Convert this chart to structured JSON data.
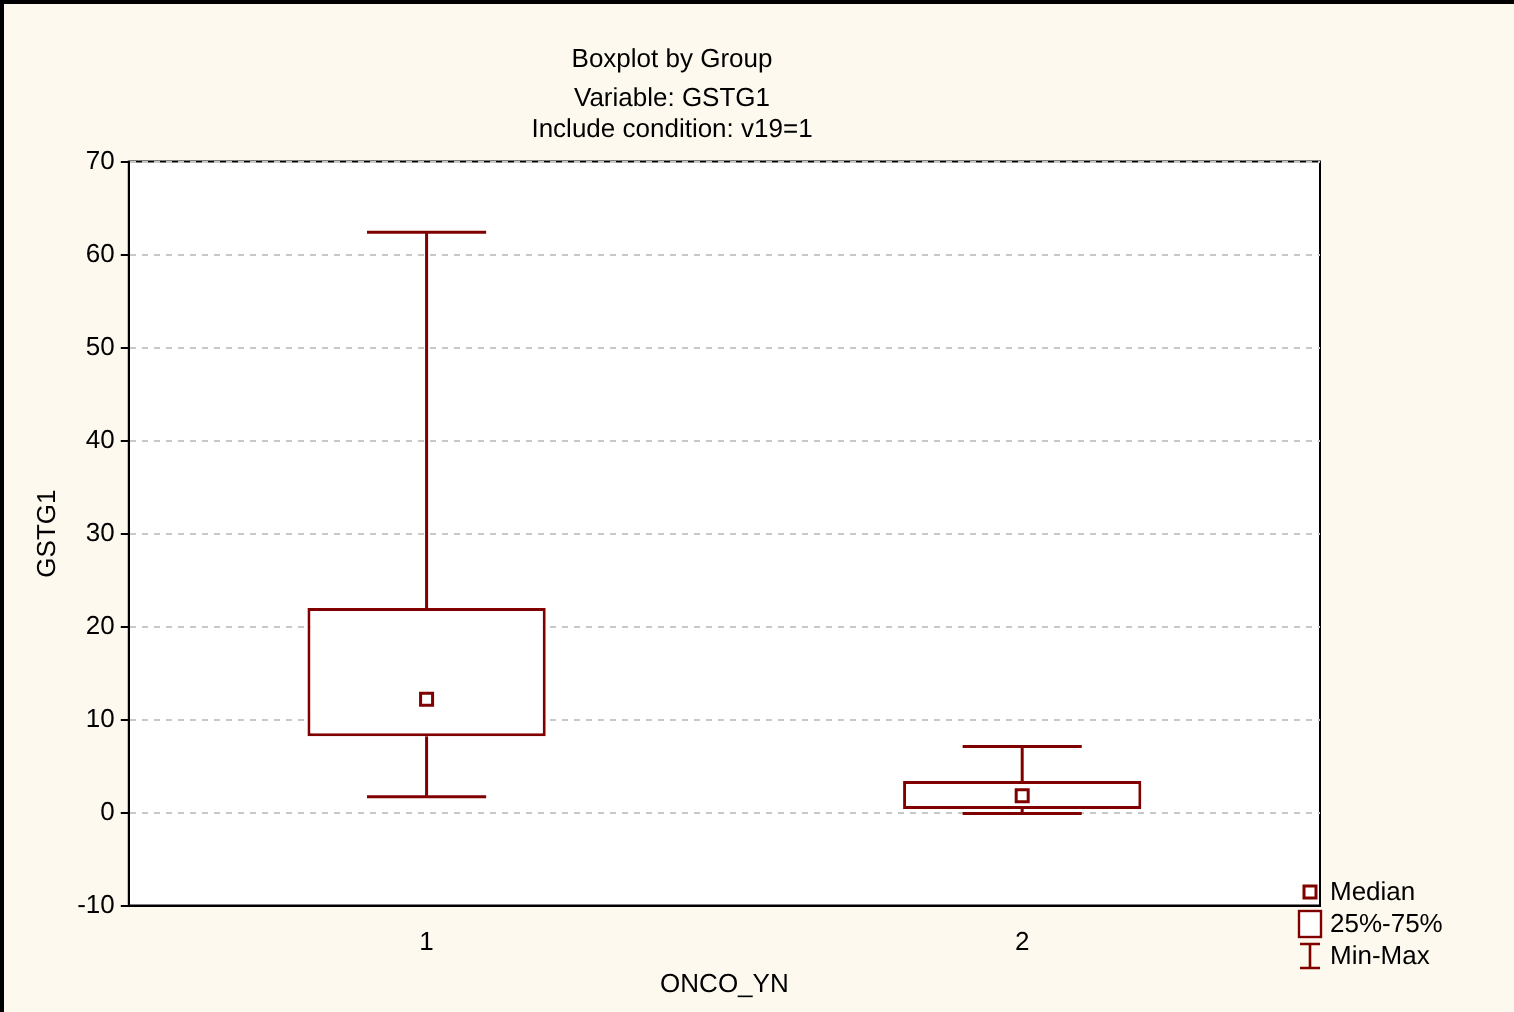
{
  "chart_data": {
    "type": "box",
    "title": "Boxplot by Group",
    "subtitle": [
      "Variable: GSTG1",
      "Include condition: v19=1"
    ],
    "xlabel": "ONCO_YN",
    "ylabel": "GSTG1",
    "categories": [
      "1",
      "2"
    ],
    "boxes": [
      {
        "low": 1.7,
        "q1": 8.2,
        "median": 12.2,
        "q3": 22,
        "high": 62.4
      },
      {
        "low": -0.1,
        "q1": 0.4,
        "median": 1.8,
        "q3": 3.4,
        "high": 7.1
      }
    ],
    "color": "#800000",
    "ylim": [
      -10,
      70
    ],
    "yticks": [
      -10,
      0,
      10,
      20,
      30,
      40,
      50,
      60,
      70
    ],
    "grid": "y",
    "annotations": [
      "Median",
      "25%-75%",
      "Min-Max"
    ]
  }
}
